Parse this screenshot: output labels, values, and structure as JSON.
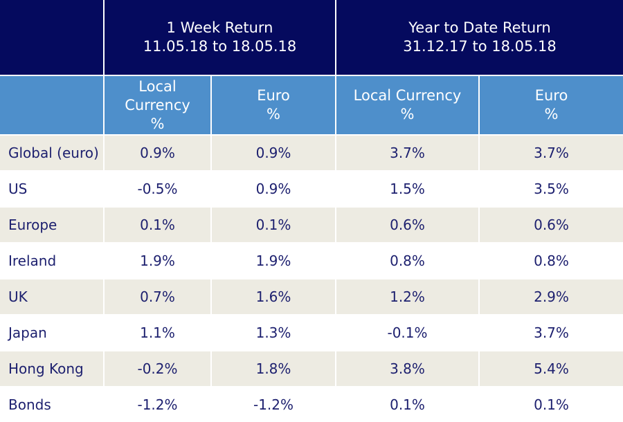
{
  "header": {
    "week_return": {
      "title": "1 Week Return",
      "dates": "11.05.18 to 18.05.18"
    },
    "ytd_return": {
      "title": "Year to Date Return",
      "dates": "31.12.17 to 18.05.18"
    }
  },
  "subheader": {
    "week_local": [
      "Local",
      "Currency",
      "%"
    ],
    "week_euro": [
      "Euro",
      "%"
    ],
    "ytd_local": [
      "Local Currency",
      "%"
    ],
    "ytd_euro": [
      "Euro",
      "%"
    ]
  },
  "rows": [
    {
      "label": "Global (euro)",
      "week_local": "0.9%",
      "week_euro": "0.9%",
      "ytd_local": "3.7%",
      "ytd_euro": "3.7%"
    },
    {
      "label": "US",
      "week_local": "-0.5%",
      "week_euro": "0.9%",
      "ytd_local": "1.5%",
      "ytd_euro": "3.5%"
    },
    {
      "label": "Europe",
      "week_local": "0.1%",
      "week_euro": "0.1%",
      "ytd_local": "0.6%",
      "ytd_euro": "0.6%"
    },
    {
      "label": "Ireland",
      "week_local": "1.9%",
      "week_euro": "1.9%",
      "ytd_local": "0.8%",
      "ytd_euro": "0.8%"
    },
    {
      "label": "UK",
      "week_local": "0.7%",
      "week_euro": "1.6%",
      "ytd_local": "1.2%",
      "ytd_euro": "2.9%"
    },
    {
      "label": "Japan",
      "week_local": "1.1%",
      "week_euro": "1.3%",
      "ytd_local": "-0.1%",
      "ytd_euro": "3.7%"
    },
    {
      "label": "Hong Kong",
      "week_local": "-0.2%",
      "week_euro": "1.8%",
      "ytd_local": "3.8%",
      "ytd_euro": "5.4%"
    },
    {
      "label": "Bonds",
      "week_local": "-1.2%",
      "week_euro": "-1.2%",
      "ytd_local": "0.1%",
      "ytd_euro": "0.1%"
    }
  ],
  "colors": {
    "header_navy": "#050a5e",
    "subheader_blue": "#4e8fcb",
    "row_shade": "#edebe2",
    "body_text": "#1c1f6e"
  }
}
